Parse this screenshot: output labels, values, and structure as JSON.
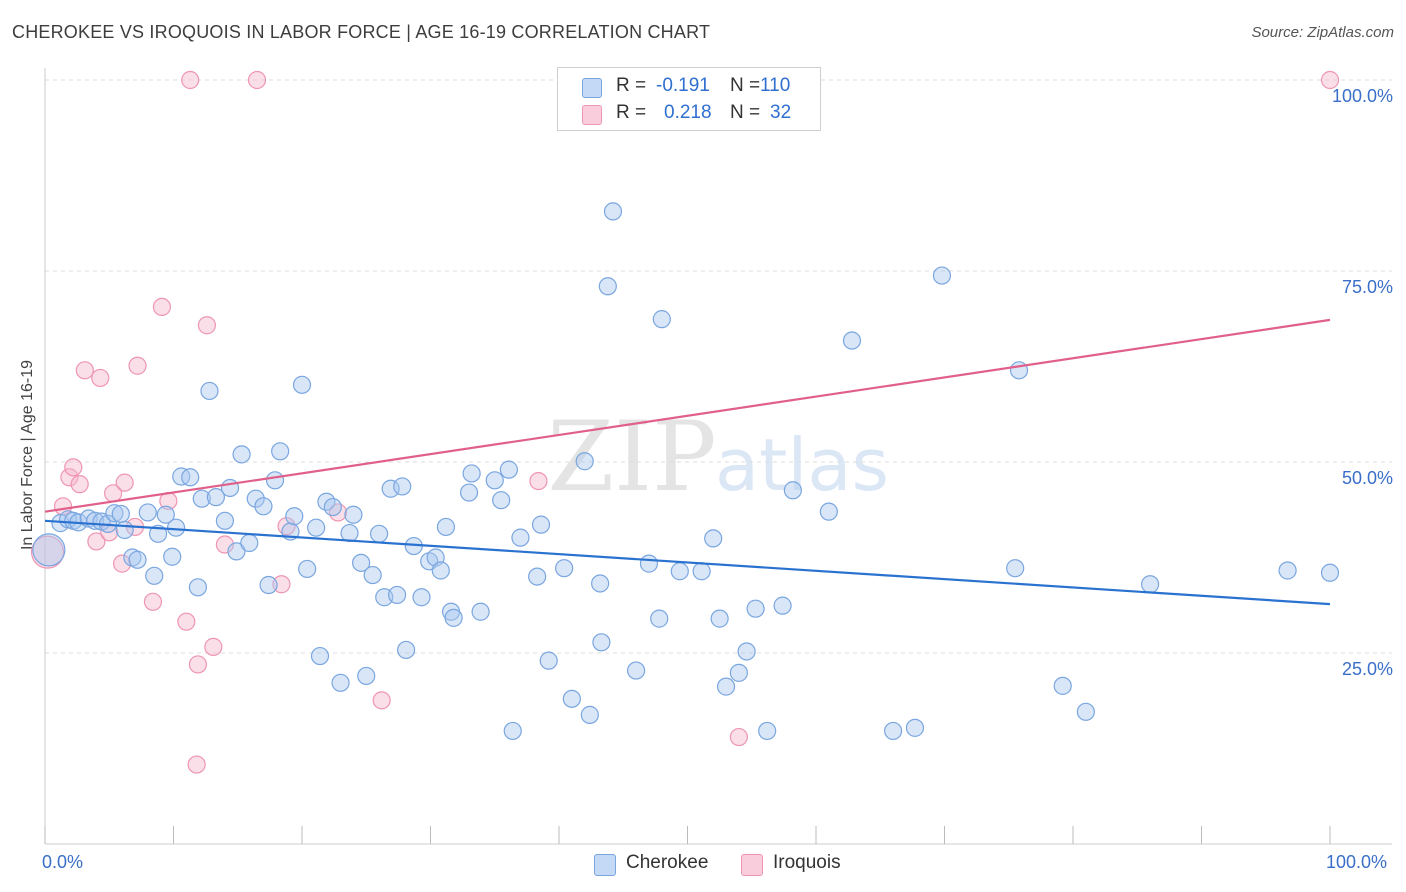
{
  "title": "CHEROKEE VS IROQUOIS IN LABOR FORCE | AGE 16-19 CORRELATION CHART",
  "source": "Source: ZipAtlas.com",
  "watermark": {
    "zip": "ZIP",
    "atlas": "atlas"
  },
  "legend": {
    "rows": [
      {
        "r_label": "R =",
        "r_value": "-0.191",
        "n_label": "N =",
        "n_value": "110"
      },
      {
        "r_label": "R =",
        "r_value": "0.218",
        "n_label": "N =",
        "n_value": "32"
      }
    ]
  },
  "bottom_legend": [
    "Cherokee",
    "Iroquois"
  ],
  "colors": {
    "cherokee_fill": "#a9c8f0",
    "cherokee_stroke": "#7aa6e0",
    "cherokee_line": "#2a72d0",
    "iroquois_fill": "#f6b8cc",
    "iroquois_stroke": "#ee95b2",
    "iroquois_line": "#e0608a",
    "tick_text": "#3a6fc9",
    "grid": "#dddddd"
  },
  "chart_data": {
    "type": "scatter",
    "title": "CHEROKEE VS IROQUOIS IN LABOR FORCE | AGE 16-19 CORRELATION CHART",
    "xlabel": "",
    "ylabel": "In Labor Force | Age 16-19",
    "xlim": [
      0,
      100
    ],
    "ylim": [
      0,
      100
    ],
    "x_tick_labels": [
      "0.0%",
      "100.0%"
    ],
    "y_ticks": [
      25,
      50,
      75,
      100
    ],
    "y_tick_labels": [
      "25.0%",
      "50.0%",
      "75.0%",
      "100.0%"
    ],
    "legend": [
      "Cherokee",
      "Iroquois"
    ],
    "series": [
      {
        "name": "Cherokee",
        "R": -0.191,
        "N": 110,
        "trend": {
          "x0": 0,
          "y0": 42.3,
          "x1": 100,
          "y1": 31.4
        },
        "points": [
          [
            0.3,
            38.5
          ],
          [
            1.2,
            42
          ],
          [
            1.8,
            42.5
          ],
          [
            2.2,
            42.3
          ],
          [
            2.6,
            42.1
          ],
          [
            3.4,
            42.6
          ],
          [
            3.9,
            42.3
          ],
          [
            4.4,
            42.2
          ],
          [
            4.9,
            41.9
          ],
          [
            5.4,
            43.3
          ],
          [
            5.9,
            43.2
          ],
          [
            6.2,
            41.1
          ],
          [
            6.8,
            37.5
          ],
          [
            7.2,
            37.2
          ],
          [
            8.0,
            43.4
          ],
          [
            8.5,
            35.1
          ],
          [
            8.8,
            40.6
          ],
          [
            9.4,
            43.1
          ],
          [
            9.9,
            37.6
          ],
          [
            10.2,
            41.4
          ],
          [
            10.6,
            48.1
          ],
          [
            11.3,
            48.0
          ],
          [
            11.9,
            33.6
          ],
          [
            12.2,
            45.2
          ],
          [
            12.8,
            59.3
          ],
          [
            13.3,
            45.4
          ],
          [
            14.0,
            42.3
          ],
          [
            14.4,
            46.6
          ],
          [
            14.9,
            38.3
          ],
          [
            15.3,
            51.0
          ],
          [
            15.9,
            39.4
          ],
          [
            16.4,
            45.2
          ],
          [
            17.0,
            44.2
          ],
          [
            17.4,
            33.9
          ],
          [
            17.9,
            47.6
          ],
          [
            18.3,
            51.4
          ],
          [
            19.1,
            40.9
          ],
          [
            19.4,
            42.9
          ],
          [
            20.0,
            60.1
          ],
          [
            20.4,
            36.0
          ],
          [
            21.1,
            41.4
          ],
          [
            21.4,
            24.6
          ],
          [
            21.9,
            44.8
          ],
          [
            22.4,
            44.1
          ],
          [
            23.0,
            21.1
          ],
          [
            23.7,
            40.7
          ],
          [
            24.0,
            43.1
          ],
          [
            24.6,
            36.8
          ],
          [
            25.0,
            22.0
          ],
          [
            25.5,
            35.2
          ],
          [
            26.0,
            40.6
          ],
          [
            26.4,
            32.3
          ],
          [
            26.9,
            46.5
          ],
          [
            27.4,
            32.6
          ],
          [
            27.8,
            46.8
          ],
          [
            28.1,
            25.4
          ],
          [
            28.7,
            39.0
          ],
          [
            29.3,
            32.3
          ],
          [
            29.9,
            37.0
          ],
          [
            30.4,
            37.5
          ],
          [
            30.8,
            35.8
          ],
          [
            31.2,
            41.5
          ],
          [
            31.6,
            30.4
          ],
          [
            31.8,
            29.6
          ],
          [
            33.0,
            46.0
          ],
          [
            33.2,
            48.5
          ],
          [
            33.9,
            30.4
          ],
          [
            35.0,
            47.6
          ],
          [
            35.5,
            45.0
          ],
          [
            36.1,
            49.0
          ],
          [
            36.4,
            14.8
          ],
          [
            37.0,
            40.1
          ],
          [
            38.3,
            35.0
          ],
          [
            38.6,
            41.8
          ],
          [
            39.2,
            24.0
          ],
          [
            40.4,
            36.1
          ],
          [
            41.0,
            19.0
          ],
          [
            42.0,
            50.1
          ],
          [
            42.4,
            16.9
          ],
          [
            43.2,
            34.1
          ],
          [
            43.3,
            26.4
          ],
          [
            43.8,
            73.0
          ],
          [
            44.2,
            82.8
          ],
          [
            46.0,
            22.7
          ],
          [
            47.0,
            36.7
          ],
          [
            47.8,
            29.5
          ],
          [
            48.0,
            68.7
          ],
          [
            49.4,
            35.7
          ],
          [
            51.1,
            35.7
          ],
          [
            52.0,
            40.0
          ],
          [
            52.5,
            29.5
          ],
          [
            53.0,
            20.6
          ],
          [
            54.0,
            22.4
          ],
          [
            54.6,
            25.2
          ],
          [
            55.3,
            30.8
          ],
          [
            56.2,
            14.8
          ],
          [
            57.4,
            31.2
          ],
          [
            58.2,
            46.3
          ],
          [
            61.0,
            43.5
          ],
          [
            62.8,
            65.9
          ],
          [
            66.0,
            14.8
          ],
          [
            67.7,
            15.2
          ],
          [
            69.8,
            74.4
          ],
          [
            75.5,
            36.1
          ],
          [
            75.8,
            62.0
          ],
          [
            79.2,
            20.7
          ],
          [
            81.0,
            17.3
          ],
          [
            86.0,
            34.0
          ],
          [
            96.7,
            35.8
          ],
          [
            100.0,
            35.5
          ]
        ]
      },
      {
        "name": "Iroquois",
        "R": 0.218,
        "N": 32,
        "trend": {
          "x0": 0,
          "y0": 43.5,
          "x1": 100,
          "y1": 68.6
        },
        "points": [
          [
            0.2,
            38.2
          ],
          [
            1.4,
            44.2
          ],
          [
            1.9,
            48.0
          ],
          [
            2.2,
            49.3
          ],
          [
            2.7,
            47.1
          ],
          [
            3.1,
            62.0
          ],
          [
            4.0,
            39.6
          ],
          [
            4.3,
            61.0
          ],
          [
            5.0,
            40.8
          ],
          [
            5.3,
            45.9
          ],
          [
            6.0,
            36.7
          ],
          [
            6.2,
            47.3
          ],
          [
            7.0,
            41.5
          ],
          [
            7.2,
            62.6
          ],
          [
            8.4,
            31.7
          ],
          [
            9.1,
            70.3
          ],
          [
            9.6,
            44.9
          ],
          [
            11.0,
            29.1
          ],
          [
            11.3,
            100.0
          ],
          [
            11.8,
            10.4
          ],
          [
            11.9,
            23.5
          ],
          [
            12.6,
            67.9
          ],
          [
            13.1,
            25.8
          ],
          [
            14.0,
            39.2
          ],
          [
            16.5,
            100.0
          ],
          [
            18.4,
            34.0
          ],
          [
            18.8,
            41.6
          ],
          [
            22.8,
            43.4
          ],
          [
            26.2,
            18.8
          ],
          [
            38.4,
            47.5
          ],
          [
            54.0,
            14.0
          ],
          [
            100.0,
            100.0
          ]
        ]
      }
    ]
  }
}
